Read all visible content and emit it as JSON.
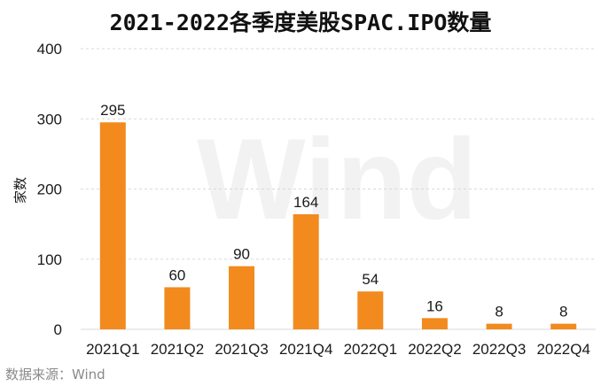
{
  "chart_data": {
    "type": "bar",
    "title": "2021-2022各季度美股SPAC.IPO数量",
    "ylabel": "家数",
    "categories": [
      "2021Q1",
      "2021Q2",
      "2021Q3",
      "2021Q4",
      "2022Q1",
      "2022Q2",
      "2022Q3",
      "2022Q4"
    ],
    "values": [
      295,
      60,
      90,
      164,
      54,
      16,
      8,
      8
    ],
    "ylim": [
      0,
      400
    ],
    "yticks": [
      0,
      100,
      200,
      300,
      400
    ],
    "grid": true,
    "bar_color": "#f28a1e",
    "grid_color": "#d9d9d9"
  },
  "source_note": "数据来源：Wind",
  "watermark": "Wind"
}
